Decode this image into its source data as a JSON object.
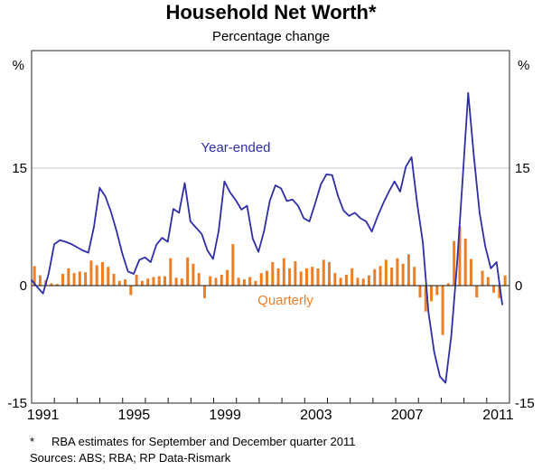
{
  "header": {
    "title": "Household Net Worth*",
    "subtitle": "Percentage change"
  },
  "chart_data": {
    "type": "bar",
    "subtype": "line-and-bar combo",
    "period_start": "1991 Q1",
    "period_end": "2011 Q4",
    "frequency": "quarterly",
    "ylim": [
      -15,
      30
    ],
    "y_unit": "%",
    "gridlines": [
      15
    ],
    "zero_line": 0,
    "x_start_year": 1991,
    "x_end_year": 2012,
    "x_axis": {
      "labels": [
        "1991",
        "1995",
        "1999",
        "2003",
        "2007",
        "2011"
      ]
    },
    "y_axis": {
      "unit": "%",
      "ticks": [
        {
          "v": 15,
          "label": "15"
        },
        {
          "v": 0,
          "label": "0"
        },
        {
          "v": -15,
          "label": "-15"
        }
      ]
    },
    "series": [
      {
        "name": "Year-ended",
        "type": "line",
        "color": "#2e2ea6",
        "values": [
          0.7,
          -0.2,
          -1.0,
          1.5,
          5.3,
          5.8,
          5.6,
          5.3,
          4.9,
          4.5,
          4.2,
          7.5,
          12.5,
          11.4,
          9.4,
          6.9,
          4.1,
          1.8,
          1.5,
          3.3,
          3.6,
          3.0,
          5.2,
          6.1,
          5.6,
          9.8,
          9.3,
          13.1,
          8.2,
          7.4,
          6.6,
          4.5,
          3.4,
          7.0,
          13.3,
          11.9,
          10.9,
          9.7,
          10.2,
          6.0,
          4.3,
          7.0,
          10.8,
          12.8,
          12.4,
          10.8,
          11.0,
          10.2,
          8.6,
          8.2,
          10.5,
          12.9,
          14.2,
          14.1,
          11.5,
          9.6,
          8.9,
          9.3,
          8.6,
          8.2,
          6.9,
          8.8,
          10.5,
          12.0,
          13.3,
          12.0,
          15.2,
          16.4,
          10.5,
          5.5,
          -3.5,
          -8.5,
          -11.6,
          -12.4,
          -6.5,
          2.5,
          13.5,
          24.6,
          16.5,
          9.3,
          5.0,
          2.2,
          3.0,
          -2.4
        ]
      },
      {
        "name": "Quarterly",
        "type": "bar",
        "color": "#ee7e23",
        "values": [
          2.5,
          1.3,
          0.7,
          0.3,
          0.2,
          1.5,
          2.2,
          1.6,
          1.8,
          1.7,
          3.2,
          2.6,
          3.0,
          2.4,
          1.5,
          0.6,
          0.8,
          -1.2,
          1.4,
          0.6,
          0.9,
          1.1,
          1.2,
          1.2,
          3.5,
          1.0,
          0.9,
          3.6,
          2.8,
          1.6,
          -1.6,
          1.2,
          1.0,
          1.4,
          2.0,
          5.3,
          1.0,
          0.8,
          1.1,
          0.6,
          1.6,
          1.9,
          3.0,
          2.2,
          3.5,
          2.2,
          3.1,
          1.8,
          2.2,
          2.4,
          2.2,
          3.3,
          3.0,
          1.6,
          1.0,
          1.4,
          2.2,
          1.0,
          0.9,
          1.3,
          2.1,
          2.5,
          3.3,
          2.3,
          3.5,
          2.8,
          4.0,
          2.4,
          -1.5,
          -3.3,
          -2.0,
          -1.2,
          -6.3,
          0.3,
          5.7,
          7.6,
          6.0,
          3.4,
          -1.5,
          1.9,
          1.1,
          -0.9,
          -1.6,
          1.3
        ]
      }
    ],
    "legend_position": "inside-plot"
  },
  "footnote": {
    "marker": "*",
    "text": "RBA estimates for September and December quarter 2011"
  },
  "sources": "Sources: ABS; RBA; RP Data-Rismark",
  "colors": {
    "line_series": "#2e2ea6",
    "bar_series": "#ee7e23",
    "gridline": "#c4c4c4",
    "axis_frame": "#4a4a4a",
    "zero_line": "#111111",
    "text": "#000000"
  }
}
